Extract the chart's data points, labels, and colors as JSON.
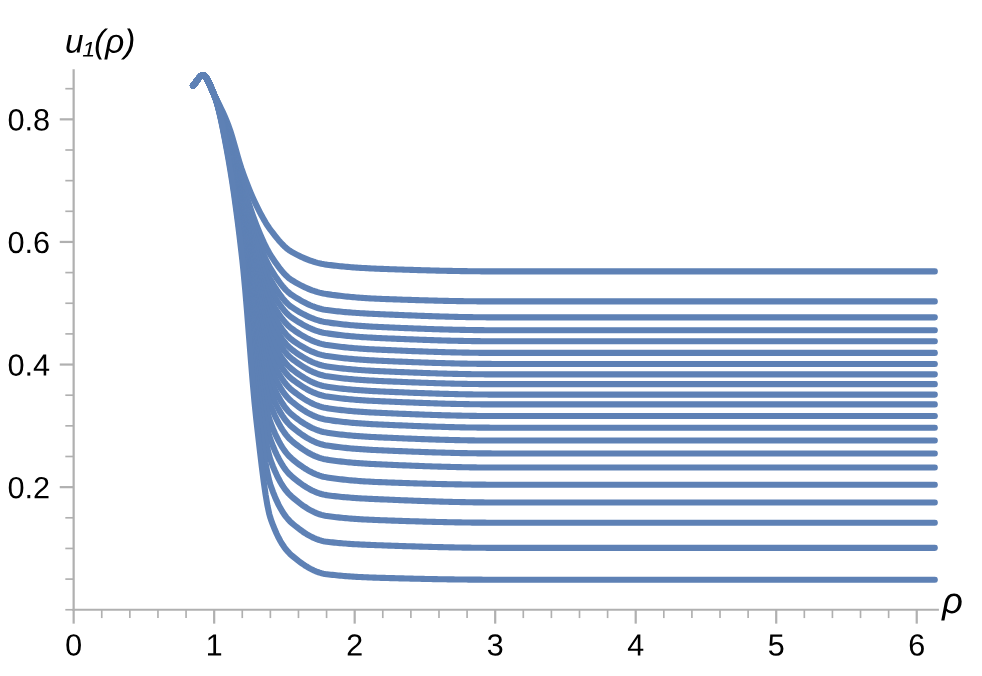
{
  "chart_data": {
    "type": "line",
    "xlabel": "ρ",
    "ylabel": "u₁(ρ)",
    "x": [
      0.85,
      0.92,
      1.0,
      1.1,
      1.2,
      1.3,
      1.4,
      1.55,
      1.8,
      2.2,
      3.0,
      6.13
    ],
    "xlim": [
      0,
      6.15
    ],
    "ylim": [
      0,
      0.88
    ],
    "xticks": [
      0,
      1,
      2,
      3,
      4,
      5,
      6
    ],
    "yticks": [
      0.2,
      0.4,
      0.6,
      0.8
    ],
    "grid": false,
    "legend": false,
    "line_style": "solid",
    "marker": "none",
    "series": [
      {
        "color": "#5e81b5",
        "values": [
          0.855,
          0.872,
          0.84,
          0.791,
          0.716,
          0.66,
          0.62,
          0.584,
          0.563,
          0.556,
          0.552,
          0.552
        ]
      },
      {
        "color": "#5e81b5",
        "values": [
          0.855,
          0.872,
          0.84,
          0.784,
          0.698,
          0.628,
          0.579,
          0.538,
          0.515,
          0.507,
          0.503,
          0.503
        ]
      },
      {
        "color": "#5e81b5",
        "values": [
          0.855,
          0.872,
          0.84,
          0.78,
          0.689,
          0.611,
          0.557,
          0.514,
          0.489,
          0.482,
          0.477,
          0.477
        ]
      },
      {
        "color": "#5e81b5",
        "values": [
          0.855,
          0.872,
          0.84,
          0.778,
          0.681,
          0.597,
          0.539,
          0.494,
          0.469,
          0.461,
          0.456,
          0.456
        ]
      },
      {
        "color": "#5e81b5",
        "values": [
          0.855,
          0.872,
          0.84,
          0.775,
          0.675,
          0.585,
          0.523,
          0.477,
          0.451,
          0.443,
          0.438,
          0.438
        ]
      },
      {
        "color": "#5e81b5",
        "values": [
          0.855,
          0.872,
          0.84,
          0.773,
          0.669,
          0.572,
          0.506,
          0.459,
          0.432,
          0.424,
          0.419,
          0.419
        ]
      },
      {
        "color": "#5e81b5",
        "values": [
          0.855,
          0.872,
          0.84,
          0.771,
          0.663,
          0.56,
          0.491,
          0.441,
          0.414,
          0.406,
          0.401,
          0.401
        ]
      },
      {
        "color": "#5e81b5",
        "values": [
          0.855,
          0.872,
          0.84,
          0.768,
          0.658,
          0.548,
          0.475,
          0.425,
          0.397,
          0.389,
          0.384,
          0.384
        ]
      },
      {
        "color": "#5e81b5",
        "values": [
          0.855,
          0.872,
          0.84,
          0.767,
          0.653,
          0.537,
          0.461,
          0.41,
          0.381,
          0.373,
          0.368,
          0.368
        ]
      },
      {
        "color": "#5e81b5",
        "values": [
          0.855,
          0.872,
          0.84,
          0.765,
          0.647,
          0.526,
          0.445,
          0.393,
          0.364,
          0.356,
          0.351,
          0.351
        ]
      },
      {
        "color": "#5e81b5",
        "values": [
          0.855,
          0.872,
          0.84,
          0.763,
          0.643,
          0.515,
          0.43,
          0.377,
          0.348,
          0.34,
          0.335,
          0.335
        ]
      },
      {
        "color": "#5e81b5",
        "values": [
          0.855,
          0.872,
          0.84,
          0.761,
          0.637,
          0.501,
          0.413,
          0.359,
          0.329,
          0.321,
          0.316,
          0.316
        ]
      },
      {
        "color": "#5e81b5",
        "values": [
          0.855,
          0.872,
          0.84,
          0.759,
          0.631,
          0.488,
          0.395,
          0.34,
          0.31,
          0.302,
          0.297,
          0.297
        ]
      },
      {
        "color": "#5e81b5",
        "values": [
          0.855,
          0.872,
          0.84,
          0.757,
          0.625,
          0.473,
          0.376,
          0.319,
          0.289,
          0.281,
          0.276,
          0.276
        ]
      },
      {
        "color": "#5e81b5",
        "values": [
          0.855,
          0.872,
          0.84,
          0.755,
          0.619,
          0.459,
          0.356,
          0.299,
          0.268,
          0.26,
          0.255,
          0.255
        ]
      },
      {
        "color": "#5e81b5",
        "values": [
          0.855,
          0.872,
          0.84,
          0.752,
          0.613,
          0.442,
          0.334,
          0.276,
          0.245,
          0.237,
          0.232,
          0.232
        ]
      },
      {
        "color": "#5e81b5",
        "values": [
          0.855,
          0.872,
          0.84,
          0.75,
          0.606,
          0.423,
          0.306,
          0.247,
          0.216,
          0.208,
          0.204,
          0.204
        ]
      },
      {
        "color": "#5e81b5",
        "values": [
          0.855,
          0.872,
          0.84,
          0.747,
          0.599,
          0.402,
          0.278,
          0.218,
          0.187,
          0.18,
          0.175,
          0.175
        ]
      },
      {
        "color": "#5e81b5",
        "values": [
          0.855,
          0.872,
          0.84,
          0.744,
          0.591,
          0.378,
          0.245,
          0.185,
          0.153,
          0.146,
          0.142,
          0.142
        ]
      },
      {
        "color": "#5e81b5",
        "values": [
          0.855,
          0.872,
          0.84,
          0.741,
          0.582,
          0.349,
          0.204,
          0.142,
          0.111,
          0.105,
          0.101,
          0.101
        ]
      },
      {
        "color": "#5e81b5",
        "values": [
          0.855,
          0.872,
          0.84,
          0.737,
          0.571,
          0.31,
          0.15,
          0.089,
          0.058,
          0.052,
          0.049,
          0.049
        ]
      }
    ]
  }
}
